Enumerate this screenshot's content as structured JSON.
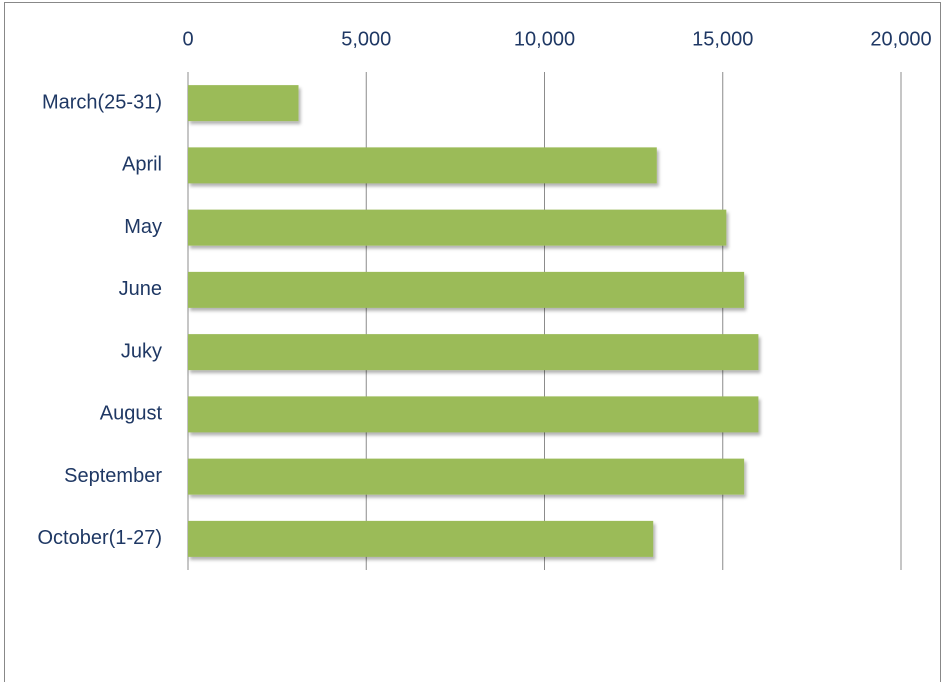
{
  "chart_data": {
    "type": "bar",
    "orientation": "horizontal",
    "categories": [
      "March(25-31)",
      "April",
      "May",
      "June",
      "Juky",
      "August",
      "September",
      "October(1-27)"
    ],
    "values": [
      3100,
      13150,
      15100,
      15600,
      16000,
      16000,
      15600,
      13050
    ],
    "color": "#9bbb59",
    "xlim": [
      0,
      20000
    ],
    "xticks": [
      0,
      {
        "value": 5000,
        "label": "5,000"
      },
      {
        "value": 10000,
        "label": "10,000"
      },
      {
        "value": 15000,
        "label": "15,000"
      },
      {
        "value": 20000,
        "label": "20,000"
      }
    ],
    "grid": true
  }
}
